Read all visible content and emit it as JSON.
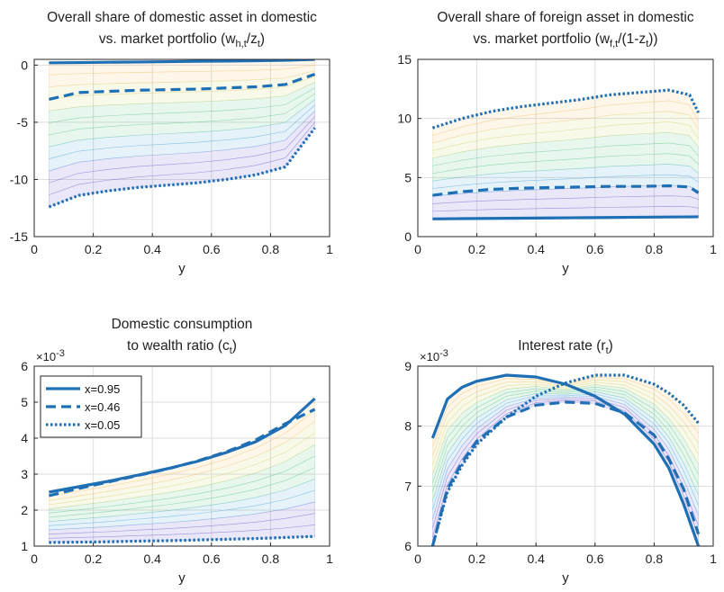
{
  "colors": {
    "series": "#1f6fb5",
    "fan": [
      "#6a5acd",
      "#4aa3d8",
      "#5cc48a",
      "#d8d26a",
      "#f0c060"
    ],
    "axis": "#262626",
    "grid": "#dedede"
  },
  "legend": {
    "entries": [
      {
        "label": "x=0.95",
        "style": "solid"
      },
      {
        "label": "x=0.46",
        "style": "dashed"
      },
      {
        "label": "x=0.05",
        "style": "dotted"
      }
    ]
  },
  "chart_data": [
    {
      "type": "line",
      "title_lines": [
        "Overall share of domestic asset in domestic",
        "vs. market portfolio ("
      ],
      "title_math": {
        "base": "w",
        "sub": "h,t",
        "sep": "/z",
        "sub2": "t",
        "close": ")"
      },
      "xlabel": "y",
      "ylabel": "",
      "xlim": [
        0,
        1
      ],
      "ylim": [
        -15,
        0.5
      ],
      "xticks": [
        0,
        0.2,
        0.4,
        0.6,
        0.8,
        1
      ],
      "xtick_labels": [
        "0",
        "0.2",
        "0.4",
        "0.6",
        "0.8",
        "1"
      ],
      "yticks": [
        0,
        -5,
        -10,
        -15
      ],
      "ytick_labels": [
        "0",
        "-5",
        "-10",
        "-15"
      ],
      "exponent": "",
      "grid": true,
      "legend_position": "",
      "x": [
        0.05,
        0.15,
        0.25,
        0.35,
        0.45,
        0.55,
        0.65,
        0.75,
        0.85,
        0.95
      ],
      "series": [
        {
          "style": "solid",
          "values": [
            0.2,
            0.22,
            0.25,
            0.27,
            0.3,
            0.33,
            0.35,
            0.38,
            0.42,
            0.5
          ]
        },
        {
          "style": "dashed",
          "values": [
            -3.0,
            -2.4,
            -2.3,
            -2.2,
            -2.15,
            -2.1,
            -2.0,
            -1.9,
            -1.7,
            -0.8
          ]
        },
        {
          "style": "dotted",
          "values": [
            -12.4,
            -11.4,
            -11.0,
            -10.7,
            -10.5,
            -10.3,
            -10.0,
            -9.6,
            -8.9,
            -5.5
          ]
        }
      ]
    },
    {
      "type": "line",
      "title_lines": [
        "Overall share of foreign asset in domestic",
        "vs. market portfolio ("
      ],
      "title_math": {
        "base": "w",
        "sub": "f,t",
        "sep": "/(1-z",
        "sub2": "t",
        "close": "))"
      },
      "xlabel": "y",
      "ylabel": "",
      "xlim": [
        0,
        1
      ],
      "ylim": [
        0,
        15
      ],
      "xticks": [
        0,
        0.2,
        0.4,
        0.6,
        0.8,
        1
      ],
      "xtick_labels": [
        "0",
        "0.2",
        "0.4",
        "0.6",
        "0.8",
        "1"
      ],
      "yticks": [
        0,
        5,
        10,
        15
      ],
      "ytick_labels": [
        "0",
        "5",
        "10",
        "15"
      ],
      "exponent": "",
      "grid": true,
      "legend_position": "",
      "x": [
        0.05,
        0.15,
        0.25,
        0.35,
        0.45,
        0.55,
        0.65,
        0.75,
        0.85,
        0.92,
        0.95
      ],
      "series": [
        {
          "style": "solid",
          "values": [
            1.5,
            1.52,
            1.54,
            1.56,
            1.58,
            1.6,
            1.62,
            1.64,
            1.66,
            1.67,
            1.68
          ]
        },
        {
          "style": "dashed",
          "values": [
            3.5,
            3.8,
            4.0,
            4.1,
            4.15,
            4.2,
            4.25,
            4.25,
            4.3,
            4.2,
            3.7
          ]
        },
        {
          "style": "dotted",
          "values": [
            9.2,
            10.0,
            10.6,
            11.0,
            11.3,
            11.6,
            12.0,
            12.2,
            12.4,
            12.0,
            10.5
          ]
        }
      ]
    },
    {
      "type": "line",
      "title_lines": [
        "Domestic consumption",
        "to wealth ratio ("
      ],
      "title_math": {
        "base": "c",
        "sub": "t",
        "sep": "",
        "sub2": "",
        "close": ")"
      },
      "xlabel": "y",
      "ylabel": "",
      "xlim": [
        0,
        1
      ],
      "ylim": [
        1,
        6
      ],
      "xticks": [
        0,
        0.2,
        0.4,
        0.6,
        0.8,
        1
      ],
      "xtick_labels": [
        "0",
        "0.2",
        "0.4",
        "0.6",
        "0.8",
        "1"
      ],
      "yticks": [
        1,
        2,
        3,
        4,
        5,
        6
      ],
      "ytick_labels": [
        "1",
        "2",
        "3",
        "4",
        "5",
        "6"
      ],
      "exponent": "-3",
      "grid": true,
      "legend_position": "top-left",
      "x": [
        0.05,
        0.15,
        0.25,
        0.35,
        0.45,
        0.55,
        0.65,
        0.75,
        0.85,
        0.95
      ],
      "series": [
        {
          "style": "solid",
          "values": [
            2.5,
            2.65,
            2.8,
            2.97,
            3.15,
            3.35,
            3.6,
            3.9,
            4.35,
            5.1
          ]
        },
        {
          "style": "dashed",
          "values": [
            2.4,
            2.6,
            2.78,
            2.96,
            3.14,
            3.36,
            3.62,
            3.95,
            4.4,
            4.8
          ]
        },
        {
          "style": "dotted",
          "values": [
            1.1,
            1.11,
            1.12,
            1.14,
            1.15,
            1.17,
            1.19,
            1.21,
            1.24,
            1.27
          ]
        }
      ]
    },
    {
      "type": "line",
      "title_lines": [
        "Interest rate ("
      ],
      "title_math": {
        "base": "r",
        "sub": "t",
        "sep": "",
        "sub2": "",
        "close": ")"
      },
      "xlabel": "y",
      "ylabel": "",
      "xlim": [
        0,
        1
      ],
      "ylim": [
        6,
        9
      ],
      "xticks": [
        0,
        0.2,
        0.4,
        0.6,
        0.8,
        1
      ],
      "xtick_labels": [
        "0",
        "0.2",
        "0.4",
        "0.6",
        "0.8",
        "1"
      ],
      "yticks": [
        6,
        7,
        8,
        9
      ],
      "ytick_labels": [
        "6",
        "7",
        "8",
        "9"
      ],
      "exponent": "-3",
      "grid": true,
      "legend_position": "",
      "x": [
        0.05,
        0.1,
        0.15,
        0.2,
        0.3,
        0.4,
        0.5,
        0.6,
        0.7,
        0.8,
        0.85,
        0.9,
        0.95
      ],
      "series": [
        {
          "style": "solid",
          "values": [
            7.8,
            8.45,
            8.65,
            8.75,
            8.85,
            8.82,
            8.7,
            8.5,
            8.2,
            7.7,
            7.3,
            6.7,
            6.0
          ]
        },
        {
          "style": "dashed",
          "values": [
            6.0,
            6.95,
            7.4,
            7.75,
            8.15,
            8.35,
            8.4,
            8.38,
            8.22,
            7.85,
            7.45,
            6.95,
            6.2
          ]
        },
        {
          "style": "dotted",
          "values": [
            6.0,
            6.9,
            7.35,
            7.7,
            8.15,
            8.5,
            8.72,
            8.85,
            8.85,
            8.7,
            8.55,
            8.35,
            8.05
          ]
        }
      ]
    }
  ]
}
